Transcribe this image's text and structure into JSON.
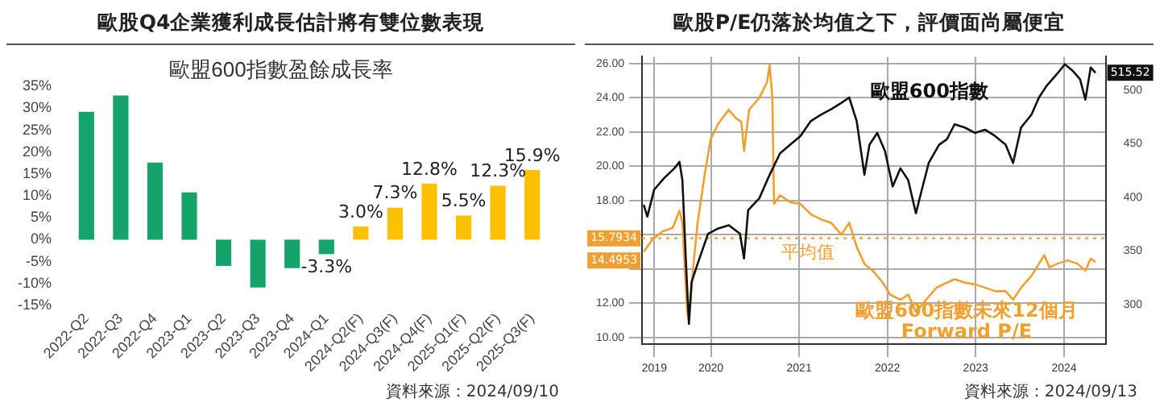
{
  "chart_data": [
    {
      "type": "bar",
      "title": "歐股Q4企業獲利成長估計將有雙位數表現",
      "subtitle": "歐盟600指數盈餘成長率",
      "categories": [
        "2022-Q2",
        "2022-Q3",
        "2022-Q4",
        "2023-Q1",
        "2023-Q2",
        "2023-Q3",
        "2023-Q4",
        "2024-Q1",
        "2024-Q2(F)",
        "2024-Q3(F)",
        "2024-Q4(F)",
        "2025-Q1(F)",
        "2025-Q2(F)",
        "2025-Q3(F)"
      ],
      "values": [
        29.2,
        32.9,
        17.6,
        10.8,
        -6.0,
        -10.9,
        -6.5,
        -3.3,
        3.0,
        7.3,
        12.8,
        5.5,
        12.3,
        15.9
      ],
      "colors": [
        "#13a36b",
        "#13a36b",
        "#13a36b",
        "#13a36b",
        "#13a36b",
        "#13a36b",
        "#13a36b",
        "#13a36b",
        "#ffc000",
        "#ffc000",
        "#ffc000",
        "#ffc000",
        "#ffc000",
        "#ffc000"
      ],
      "value_labels": [
        null,
        null,
        null,
        null,
        null,
        null,
        null,
        "-3.3%",
        "3.0%",
        "7.3%",
        "12.8%",
        "5.5%",
        "12.3%",
        "15.9%"
      ],
      "ylim": [
        -15,
        35
      ],
      "yticks": [
        {
          "value": -15,
          "label": "-15%"
        },
        {
          "value": -10,
          "label": "-10%"
        },
        {
          "value": -5,
          "label": "-5%"
        },
        {
          "value": 0,
          "label": "0%"
        },
        {
          "value": 5,
          "label": "5%"
        },
        {
          "value": 10,
          "label": "10%"
        },
        {
          "value": 15,
          "label": "15%"
        },
        {
          "value": 20,
          "label": "20%"
        },
        {
          "value": 25,
          "label": "25%"
        },
        {
          "value": 30,
          "label": "30%"
        },
        {
          "value": 35,
          "label": "35%"
        }
      ],
      "grid": false,
      "legend": false,
      "annotations": [
        "資料來源：2024/09/10"
      ]
    },
    {
      "type": "line",
      "title": "歐股P/E仍落於均值之下，評價面尚屬便宜",
      "grid": true,
      "legend": false,
      "xlim": [
        "2019-09-20",
        "2024-12-20"
      ],
      "xticks": [
        {
          "value": "2019-11-10",
          "label": "2019"
        },
        {
          "value": "2020-07-01",
          "label": "2020"
        },
        {
          "value": "2021-07-01",
          "label": "2021"
        },
        {
          "value": "2022-07-01",
          "label": "2022"
        },
        {
          "value": "2023-07-01",
          "label": "2023"
        },
        {
          "value": "2024-07-01",
          "label": "2024"
        }
      ],
      "ylim": [
        9.6,
        26.4
      ],
      "yticks": [
        {
          "value": 10,
          "label": "10.00"
        },
        {
          "value": 12,
          "label": "12.00"
        },
        {
          "value": 14,
          "label": null
        },
        {
          "value": 16,
          "label": null
        },
        {
          "value": 18,
          "label": "18.00"
        },
        {
          "value": 20,
          "label": "20.00"
        },
        {
          "value": 22,
          "label": "22.00"
        },
        {
          "value": 24,
          "label": "24.00"
        },
        {
          "value": 26,
          "label": "26.00"
        }
      ],
      "y2lim": [
        263,
        531
      ],
      "y2ticks": [
        300,
        350,
        400,
        450,
        500
      ],
      "ref_lines": [
        {
          "axis": "y",
          "value": 15.7934,
          "label": "平均值",
          "color": "#f0a030",
          "line_style": "dotted"
        }
      ],
      "annotations": [
        {
          "text": "15.7934",
          "x": "2019-09-20",
          "y": 15.7934
        },
        {
          "text": "14.4953",
          "x": "2019-09-20",
          "y": 14.4953
        },
        "515.52",
        "資料來源：2024/09/13"
      ],
      "series": [
        {
          "name": "歐盟600指數",
          "color": "#111111",
          "axis": "y2",
          "x": [
            "2019-09-27",
            "2019-10-12",
            "2019-11-09",
            "2019-12-21",
            "2020-02-01",
            "2020-02-22",
            "2020-03-05",
            "2020-03-20",
            "2020-04-01",
            "2020-04-12",
            "2020-05-07",
            "2020-06-19",
            "2020-08-01",
            "2020-09-13",
            "2020-10-29",
            "2020-11-15",
            "2020-12-02",
            "2021-01-17",
            "2021-03-01",
            "2021-04-13",
            "2021-05-25",
            "2021-07-06",
            "2021-08-18",
            "2021-09-29",
            "2021-11-10",
            "2021-12-23",
            "2022-01-24",
            "2022-02-24",
            "2022-03-28",
            "2022-04-18",
            "2022-05-20",
            "2022-06-21",
            "2022-07-23",
            "2022-08-24",
            "2022-09-25",
            "2022-10-27",
            "2022-11-17",
            "2022-12-19",
            "2023-01-31",
            "2023-03-04",
            "2023-04-05",
            "2023-05-17",
            "2023-06-28",
            "2023-08-09",
            "2023-09-20",
            "2023-11-02",
            "2023-12-03",
            "2024-01-05",
            "2024-02-17",
            "2024-03-19",
            "2024-04-20",
            "2024-06-02",
            "2024-07-04",
            "2024-08-05",
            "2024-09-05",
            "2024-09-27",
            "2024-10-19",
            "2024-11-08"
          ],
          "values": [
            393,
            382,
            407,
            418,
            427,
            433,
            416,
            338,
            282,
            321,
            338,
            366,
            371,
            374,
            366,
            343,
            388,
            399,
            421,
            441,
            449,
            457,
            471,
            477,
            482,
            488,
            493,
            471,
            421,
            449,
            460,
            443,
            410,
            427,
            416,
            385,
            404,
            432,
            449,
            454,
            468,
            465,
            460,
            463,
            457,
            449,
            432,
            465,
            477,
            493,
            504,
            515,
            524,
            518,
            510,
            491,
            521,
            516
          ]
        },
        {
          "name": "歐盟600指數未來12個月 Forward P/E",
          "color": "#f0a030",
          "x": [
            "2019-09-27",
            "2019-11-01",
            "2019-12-15",
            "2020-01-25",
            "2020-02-22",
            "2020-03-05",
            "2020-03-15",
            "2020-03-25",
            "2020-04-01",
            "2020-04-20",
            "2020-05-07",
            "2020-06-05",
            "2020-06-30",
            "2020-08-01",
            "2020-09-13",
            "2020-10-13",
            "2020-11-04",
            "2020-11-15",
            "2020-12-06",
            "2021-01-17",
            "2021-02-18",
            "2021-03-01",
            "2021-03-12",
            "2021-03-19",
            "2021-04-13",
            "2021-05-25",
            "2021-07-06",
            "2021-08-18",
            "2021-09-29",
            "2021-11-10",
            "2021-12-23",
            "2022-01-24",
            "2022-02-24",
            "2022-03-28",
            "2022-05-01",
            "2022-06-12",
            "2022-07-12",
            "2022-08-24",
            "2022-09-25",
            "2022-10-27",
            "2022-12-08",
            "2023-01-20",
            "2023-03-04",
            "2023-04-05",
            "2023-05-17",
            "2023-06-28",
            "2023-08-09",
            "2023-09-20",
            "2023-11-02",
            "2023-12-03",
            "2024-01-05",
            "2024-02-17",
            "2024-03-19",
            "2024-04-10",
            "2024-05-01",
            "2024-06-02",
            "2024-07-15",
            "2024-08-26",
            "2024-09-27",
            "2024-10-19",
            "2024-11-08"
          ],
          "values": [
            15.0,
            15.7,
            16.2,
            16.4,
            17.4,
            16.7,
            13.9,
            11.5,
            11.0,
            14.3,
            16.7,
            19.5,
            21.6,
            22.5,
            23.3,
            22.8,
            22.6,
            20.9,
            23.3,
            24.0,
            24.9,
            25.9,
            24.0,
            17.8,
            18.3,
            17.9,
            17.8,
            17.2,
            16.9,
            16.7,
            16.0,
            16.7,
            15.3,
            14.3,
            13.9,
            13.2,
            12.5,
            12.2,
            12.5,
            11.5,
            12.2,
            12.9,
            13.2,
            13.4,
            13.2,
            13.1,
            12.9,
            12.7,
            12.7,
            12.2,
            12.9,
            13.6,
            14.3,
            14.8,
            14.1,
            14.3,
            14.5,
            14.3,
            13.9,
            14.6,
            14.4
          ]
        }
      ]
    }
  ]
}
